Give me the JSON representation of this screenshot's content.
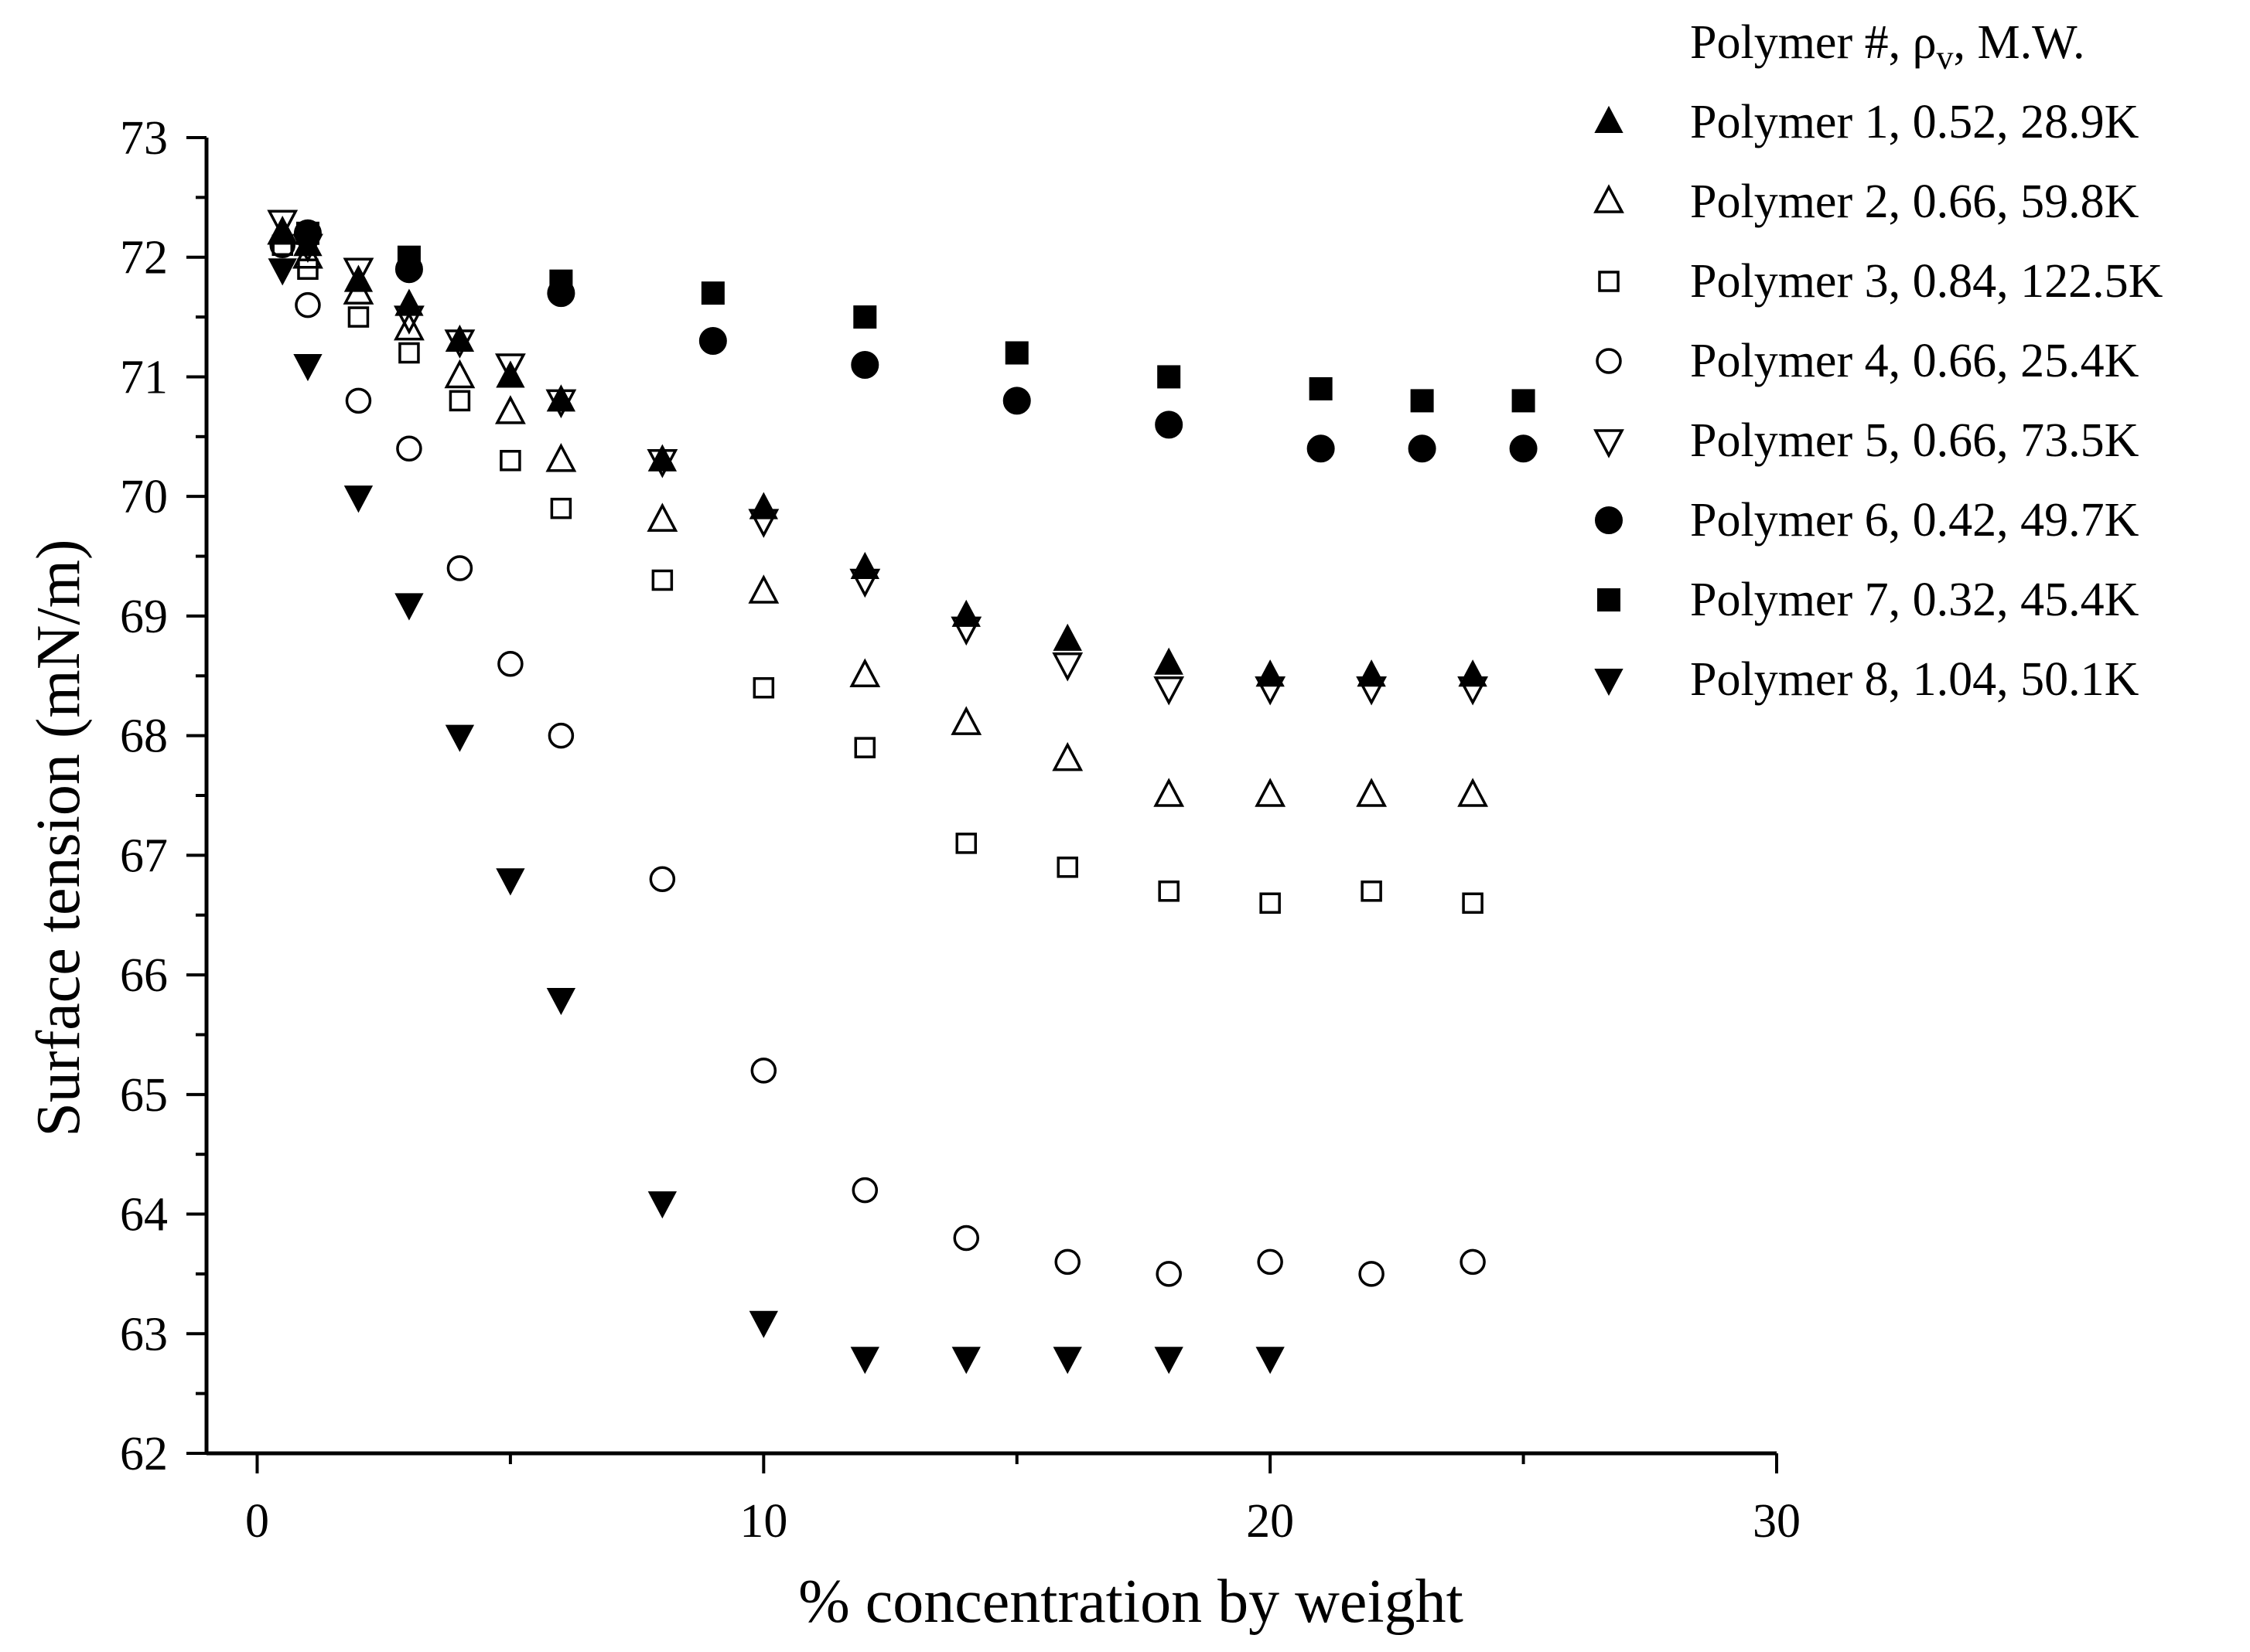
{
  "chart_data": {
    "type": "scatter",
    "title": "",
    "xlabel": "% concentration by weight",
    "ylabel": "Surface tension (mN/m)",
    "xlim": [
      -1,
      30
    ],
    "ylim": [
      62,
      73
    ],
    "x_ticks": [
      0,
      10,
      20,
      30
    ],
    "y_ticks": [
      62,
      63,
      64,
      65,
      66,
      67,
      68,
      69,
      70,
      71,
      72,
      73
    ],
    "grid": false,
    "legend_position": "top-right",
    "legend_title": "Polymer #, ρv, M.W.",
    "legend_title_parts": {
      "a": "Polymer #, ρ",
      "sub": "v",
      "b": ", M.W."
    },
    "series": [
      {
        "name": "Polymer 1, 0.52, 28.9K",
        "marker": "triangle-up-filled",
        "x": [
          0.5,
          1,
          2,
          3,
          4,
          5,
          6,
          8,
          10,
          12,
          14,
          16,
          18,
          20,
          22,
          24
        ],
        "y": [
          72.2,
          72.1,
          71.8,
          71.6,
          71.3,
          71.0,
          70.8,
          70.3,
          69.9,
          69.4,
          69.0,
          68.8,
          68.6,
          68.5,
          68.5,
          68.5
        ]
      },
      {
        "name": "Polymer 2, 0.66, 59.8K",
        "marker": "triangle-up-open",
        "x": [
          0.5,
          1,
          2,
          3,
          4,
          5,
          6,
          8,
          10,
          12,
          14,
          16,
          18,
          20,
          22,
          24
        ],
        "y": [
          72.2,
          72.0,
          71.7,
          71.4,
          71.0,
          70.7,
          70.3,
          69.8,
          69.2,
          68.5,
          68.1,
          67.8,
          67.5,
          67.5,
          67.5,
          67.5
        ]
      },
      {
        "name": "Polymer 3, 0.84, 122.5K",
        "marker": "square-open",
        "x": [
          0.5,
          1,
          2,
          3,
          4,
          5,
          6,
          8,
          10,
          12,
          14,
          16,
          18,
          20,
          22,
          24
        ],
        "y": [
          72.1,
          71.9,
          71.5,
          71.2,
          70.8,
          70.3,
          69.9,
          69.3,
          68.4,
          67.9,
          67.1,
          66.9,
          66.7,
          66.6,
          66.7,
          66.6
        ]
      },
      {
        "name": "Polymer 4, 0.66, 25.4K",
        "marker": "circle-open",
        "x": [
          0.5,
          1,
          2,
          3,
          4,
          5,
          6,
          8,
          10,
          12,
          14,
          16,
          18,
          20,
          22,
          24
        ],
        "y": [
          72.1,
          71.6,
          70.8,
          70.4,
          69.4,
          68.6,
          68.0,
          66.8,
          65.2,
          64.2,
          63.8,
          63.6,
          63.5,
          63.6,
          63.5,
          63.6
        ]
      },
      {
        "name": "Polymer 5, 0.66, 73.5K",
        "marker": "triangle-down-open",
        "x": [
          0.5,
          1,
          2,
          3,
          4,
          5,
          6,
          8,
          10,
          12,
          14,
          16,
          18,
          20,
          22,
          24
        ],
        "y": [
          72.3,
          72.1,
          71.9,
          71.5,
          71.3,
          71.1,
          70.8,
          70.3,
          69.8,
          69.3,
          68.9,
          68.6,
          68.4,
          68.4,
          68.4,
          68.4
        ]
      },
      {
        "name": "Polymer 6, 0.42, 49.7K",
        "marker": "circle-filled",
        "x": [
          1,
          3,
          6,
          9,
          12,
          15,
          18,
          21,
          23,
          25
        ],
        "y": [
          72.2,
          71.9,
          71.7,
          71.3,
          71.1,
          70.8,
          70.6,
          70.4,
          70.4,
          70.4
        ]
      },
      {
        "name": "Polymer 7, 0.32, 45.4K",
        "marker": "square-filled",
        "x": [
          1,
          3,
          6,
          9,
          12,
          15,
          18,
          21,
          23,
          25
        ],
        "y": [
          72.2,
          72.0,
          71.8,
          71.7,
          71.5,
          71.2,
          71.0,
          70.9,
          70.8,
          70.8
        ]
      },
      {
        "name": "Polymer 8, 1.04, 50.1K",
        "marker": "triangle-down-filled",
        "x": [
          0.5,
          1,
          2,
          3,
          4,
          5,
          6,
          8,
          10,
          12,
          14,
          16,
          18,
          20
        ],
        "y": [
          71.9,
          71.1,
          70.0,
          69.1,
          68.0,
          66.8,
          65.8,
          64.1,
          63.1,
          62.8,
          62.8,
          62.8,
          62.8,
          62.8
        ]
      }
    ]
  }
}
